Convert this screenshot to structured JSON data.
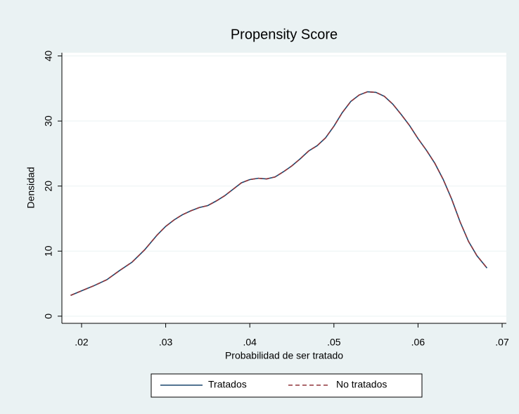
{
  "chart_data": {
    "type": "line",
    "title": "Propensity Score",
    "xlabel": "Probabilidad de ser tratado",
    "ylabel": "Densidad",
    "x": [
      0.0187,
      0.02,
      0.0215,
      0.023,
      0.0245,
      0.026,
      0.0275,
      0.029,
      0.03,
      0.031,
      0.032,
      0.033,
      0.034,
      0.035,
      0.036,
      0.037,
      0.038,
      0.039,
      0.04,
      0.041,
      0.042,
      0.043,
      0.044,
      0.045,
      0.046,
      0.047,
      0.048,
      0.049,
      0.05,
      0.051,
      0.052,
      0.053,
      0.054,
      0.055,
      0.056,
      0.057,
      0.058,
      0.059,
      0.06,
      0.061,
      0.062,
      0.063,
      0.064,
      0.065,
      0.066,
      0.067,
      0.0682
    ],
    "series": [
      {
        "name": "Tratados",
        "color": "#1a476f",
        "dash": false,
        "values": [
          3.2,
          3.9,
          4.7,
          5.6,
          7.0,
          8.3,
          10.2,
          12.5,
          13.8,
          14.8,
          15.6,
          16.2,
          16.7,
          17.0,
          17.7,
          18.5,
          19.5,
          20.5,
          21.0,
          21.2,
          21.1,
          21.4,
          22.2,
          23.1,
          24.2,
          25.4,
          26.2,
          27.4,
          29.2,
          31.3,
          33.0,
          34.0,
          34.5,
          34.4,
          33.8,
          32.6,
          31.0,
          29.3,
          27.3,
          25.5,
          23.5,
          21.0,
          18.0,
          14.5,
          11.5,
          9.3,
          7.4
        ]
      },
      {
        "name": "No tratados",
        "color": "#90353b",
        "dash": true,
        "values": [
          3.2,
          3.9,
          4.7,
          5.6,
          7.0,
          8.3,
          10.2,
          12.5,
          13.8,
          14.8,
          15.6,
          16.2,
          16.7,
          17.0,
          17.7,
          18.5,
          19.5,
          20.5,
          21.0,
          21.2,
          21.1,
          21.4,
          22.2,
          23.1,
          24.2,
          25.4,
          26.2,
          27.4,
          29.2,
          31.3,
          33.0,
          34.0,
          34.5,
          34.4,
          33.8,
          32.6,
          31.0,
          29.3,
          27.3,
          25.5,
          23.5,
          21.0,
          18.0,
          14.5,
          11.5,
          9.3,
          7.4
        ]
      }
    ],
    "xlim": [
      0.01766,
      0.0705
    ],
    "ylim": [
      -1.1,
      40.5
    ],
    "xticks": [
      {
        "value": 0.02,
        "label": ".02"
      },
      {
        "value": 0.03,
        "label": ".03"
      },
      {
        "value": 0.04,
        "label": ".04"
      },
      {
        "value": 0.05,
        "label": ".05"
      },
      {
        "value": 0.06,
        "label": ".06"
      },
      {
        "value": 0.07,
        "label": ".07"
      }
    ],
    "yticks": [
      0,
      10,
      20,
      30,
      40
    ],
    "grid": true,
    "legend": "bottom"
  }
}
